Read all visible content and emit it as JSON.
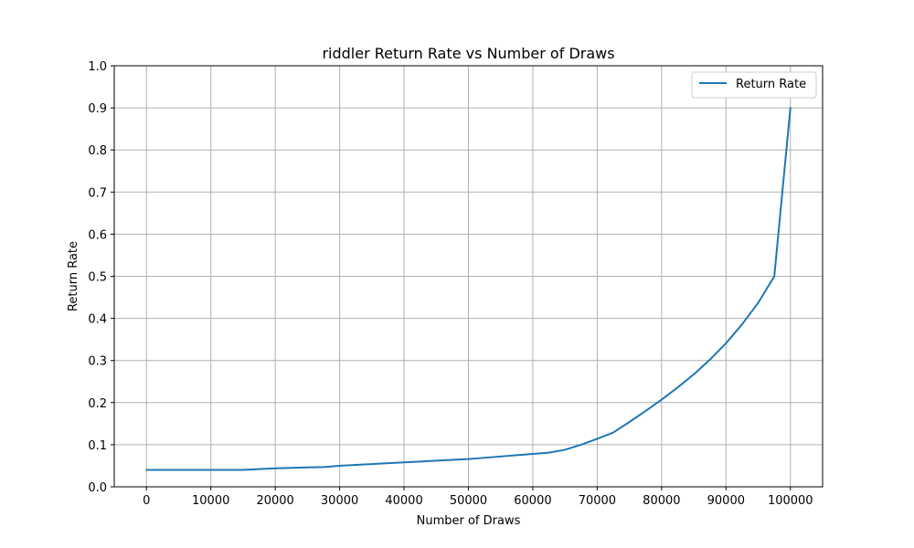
{
  "chart_data": {
    "type": "line",
    "title": "riddler Return Rate vs Number of Draws",
    "xlabel": "Number of Draws",
    "ylabel": "Return Rate",
    "xlim": [
      -5000,
      105000
    ],
    "ylim": [
      0.0,
      1.0
    ],
    "xticks": [
      0,
      10000,
      20000,
      30000,
      40000,
      50000,
      60000,
      70000,
      80000,
      90000,
      100000
    ],
    "xtick_labels": [
      "0",
      "10000",
      "20000",
      "30000",
      "40000",
      "50000",
      "60000",
      "70000",
      "80000",
      "90000",
      "100000"
    ],
    "yticks": [
      0.0,
      0.1,
      0.2,
      0.3,
      0.4,
      0.5,
      0.6,
      0.7,
      0.8,
      0.9,
      1.0
    ],
    "ytick_labels": [
      "0.0",
      "0.1",
      "0.2",
      "0.3",
      "0.4",
      "0.5",
      "0.6",
      "0.7",
      "0.8",
      "0.9",
      "1.0"
    ],
    "grid": true,
    "legend_position": "top-right",
    "series": [
      {
        "name": "Return Rate",
        "color": "#1f77b4",
        "x": [
          0,
          2500,
          5000,
          7500,
          10000,
          12500,
          15000,
          17500,
          20000,
          22500,
          25000,
          27500,
          30000,
          32500,
          35000,
          37500,
          40000,
          42500,
          45000,
          47500,
          50000,
          52500,
          55000,
          57500,
          60000,
          62500,
          65000,
          67500,
          70000,
          72500,
          75000,
          77500,
          80000,
          82500,
          85000,
          87500,
          90000,
          92500,
          95000,
          97500,
          100000
        ],
        "values": [
          0.04,
          0.04,
          0.04,
          0.04,
          0.04,
          0.04,
          0.04,
          0.042,
          0.044,
          0.045,
          0.046,
          0.047,
          0.05,
          0.052,
          0.054,
          0.056,
          0.058,
          0.06,
          0.062,
          0.064,
          0.066,
          0.069,
          0.072,
          0.075,
          0.078,
          0.081,
          0.088,
          0.1,
          0.114,
          0.129,
          0.154,
          0.18,
          0.207,
          0.236,
          0.267,
          0.302,
          0.341,
          0.386,
          0.437,
          0.5,
          0.9
        ]
      }
    ]
  }
}
